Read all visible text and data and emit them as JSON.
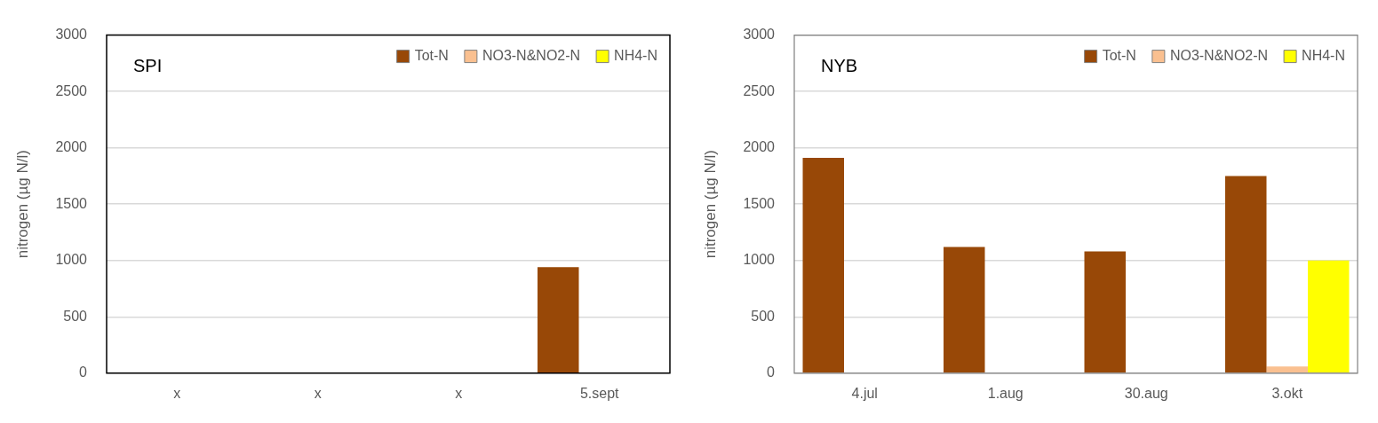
{
  "chart_data": [
    {
      "type": "bar",
      "title": "SPI",
      "categories": [
        "x",
        "x",
        "x",
        "5.sept"
      ],
      "ylabel": "nitrogen (µg N/l)",
      "ylim": [
        0,
        3000
      ],
      "yticks": [
        0,
        500,
        1000,
        1500,
        2000,
        2500,
        3000
      ],
      "grid": "y",
      "legend": "top right",
      "series": [
        {
          "name": "Tot-N",
          "color": "#984807",
          "values": [
            null,
            null,
            null,
            940
          ]
        },
        {
          "name": "NO3-N&NO2-N",
          "color": "#fac090",
          "values": [
            null,
            null,
            null,
            null
          ]
        },
        {
          "name": "NH4-N",
          "color": "#ffff00",
          "values": [
            null,
            null,
            null,
            null
          ]
        }
      ]
    },
    {
      "type": "bar",
      "title": "NYB",
      "categories": [
        "4.jul",
        "1.aug",
        "30.aug",
        "3.okt"
      ],
      "ylabel": "nitrogen (µg N/l)",
      "ylim": [
        0,
        3000
      ],
      "yticks": [
        0,
        500,
        1000,
        1500,
        2000,
        2500,
        3000
      ],
      "grid": "y",
      "legend": "top right",
      "series": [
        {
          "name": "Tot-N",
          "color": "#984807",
          "values": [
            1910,
            1120,
            1080,
            1750
          ]
        },
        {
          "name": "NO3-N&NO2-N",
          "color": "#fac090",
          "values": [
            null,
            null,
            null,
            60
          ]
        },
        {
          "name": "NH4-N",
          "color": "#ffff00",
          "values": [
            null,
            null,
            null,
            1000
          ]
        }
      ]
    }
  ]
}
